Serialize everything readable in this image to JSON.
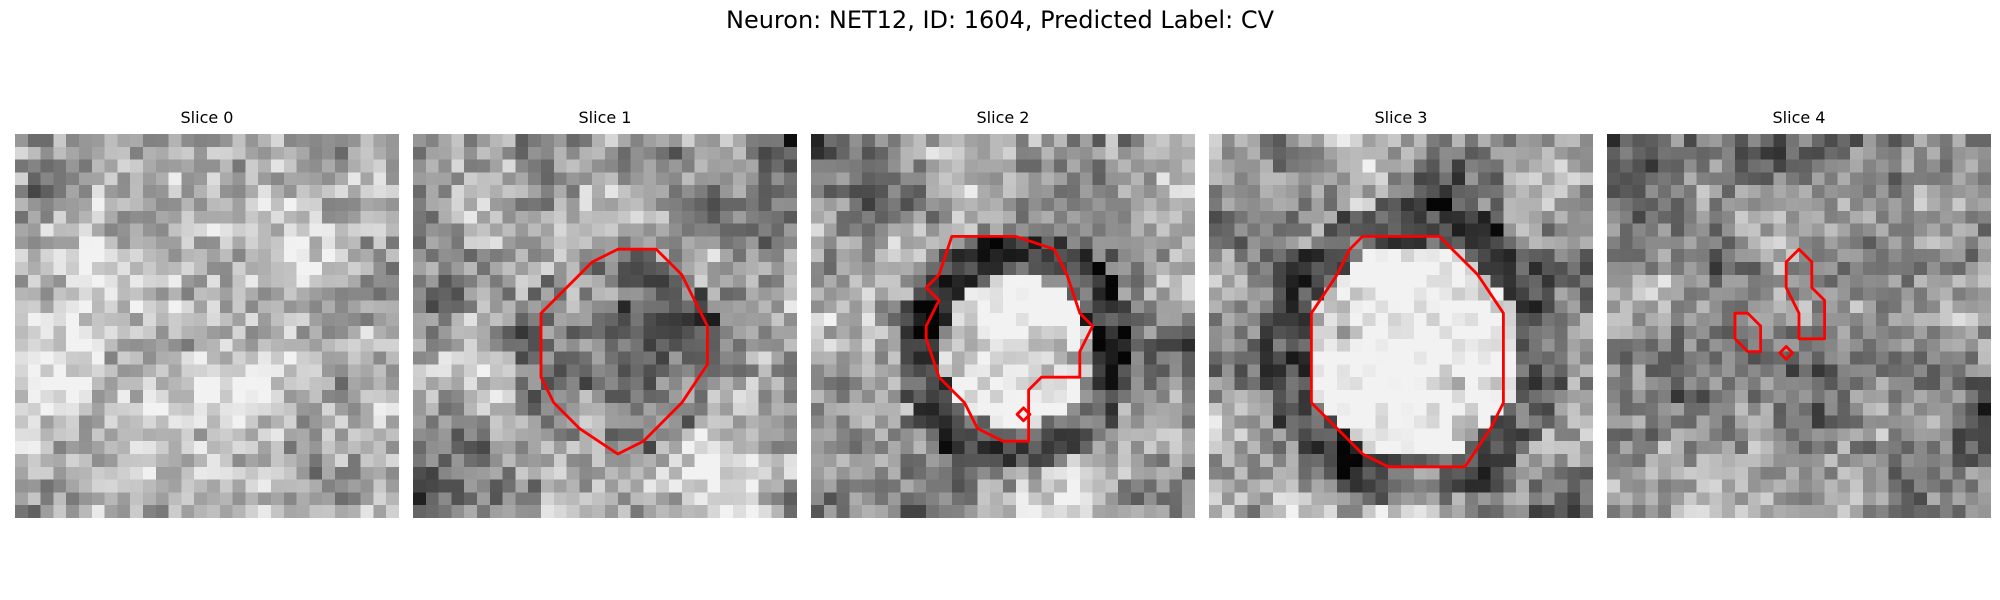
{
  "figure": {
    "title": "Neuron: NET12, ID: 1604, Predicted Label: CV"
  },
  "contour_color": "#ff0000",
  "panels": [
    {
      "title": "Slice 0",
      "seed": 11,
      "pattern": "smooth",
      "contours": []
    },
    {
      "title": "Slice 1",
      "seed": 23,
      "pattern": "dark_ring_center",
      "contours": [
        [
          [
            14,
            10
          ],
          [
            16,
            9
          ],
          [
            19,
            9
          ],
          [
            21,
            11
          ],
          [
            22,
            13
          ],
          [
            23,
            15
          ],
          [
            23,
            18
          ],
          [
            21,
            21
          ],
          [
            18,
            24
          ],
          [
            16,
            25
          ],
          [
            13,
            23
          ],
          [
            11,
            21
          ],
          [
            10,
            19
          ],
          [
            10,
            14
          ],
          [
            12,
            12
          ]
        ]
      ]
    },
    {
      "title": "Slice 2",
      "seed": 37,
      "pattern": "bright_center_dark_ring",
      "contours": [
        [
          [
            11,
            8
          ],
          [
            16,
            8
          ],
          [
            19,
            9
          ],
          [
            20,
            11
          ],
          [
            21,
            14
          ],
          [
            22,
            15
          ],
          [
            21,
            17
          ],
          [
            21,
            19
          ],
          [
            18,
            19
          ],
          [
            17,
            20
          ],
          [
            17,
            24
          ],
          [
            15,
            24
          ],
          [
            13,
            23
          ],
          [
            12,
            21
          ],
          [
            11,
            20
          ],
          [
            10,
            19
          ],
          [
            9,
            16
          ],
          [
            9,
            15
          ],
          [
            10,
            13
          ],
          [
            9,
            12
          ],
          [
            10,
            11
          ]
        ],
        [
          [
            16.6,
            21.4
          ],
          [
            17.1,
            21.9
          ],
          [
            16.6,
            22.4
          ],
          [
            16.1,
            21.9
          ]
        ]
      ]
    },
    {
      "title": "Slice 3",
      "seed": 41,
      "pattern": "bright_large_center",
      "contours": [
        [
          [
            12,
            8
          ],
          [
            18,
            8
          ],
          [
            19,
            9
          ],
          [
            21,
            11
          ],
          [
            23,
            14
          ],
          [
            23,
            18
          ],
          [
            23,
            21
          ],
          [
            22,
            23
          ],
          [
            20,
            26
          ],
          [
            14,
            26
          ],
          [
            12,
            25
          ],
          [
            10,
            23
          ],
          [
            8,
            21
          ],
          [
            8,
            14
          ],
          [
            10,
            11
          ],
          [
            11,
            9
          ]
        ]
      ]
    },
    {
      "title": "Slice 4",
      "seed": 53,
      "pattern": "noisy",
      "contours": [
        [
          [
            10,
            14
          ],
          [
            11,
            14
          ],
          [
            12,
            15
          ],
          [
            12,
            17
          ],
          [
            11,
            17
          ],
          [
            10,
            16
          ]
        ],
        [
          [
            15,
            9
          ],
          [
            16,
            10
          ],
          [
            16,
            12
          ],
          [
            17,
            13
          ],
          [
            17,
            16
          ],
          [
            15,
            16
          ],
          [
            15,
            14
          ],
          [
            14,
            12
          ],
          [
            14,
            10
          ]
        ],
        [
          [
            14,
            16.6
          ],
          [
            14.5,
            17.1
          ],
          [
            14,
            17.6
          ],
          [
            13.5,
            17.1
          ]
        ]
      ]
    }
  ]
}
